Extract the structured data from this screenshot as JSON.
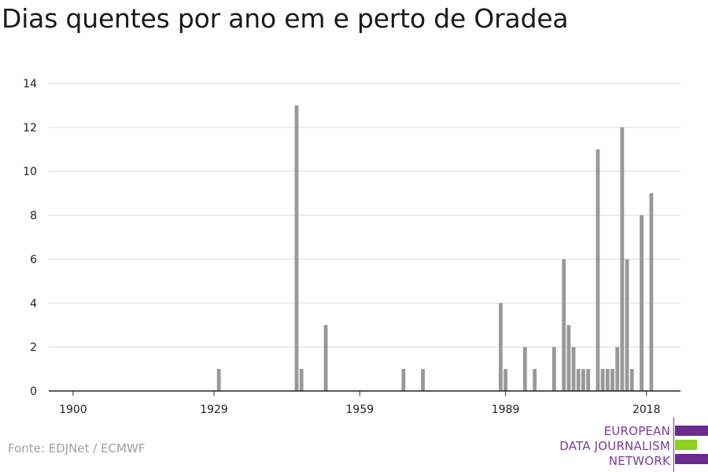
{
  "title": "Dias quentes por ano em e perto de Oradea",
  "source": "Fonte: EDJNet / ECMWF",
  "logo": {
    "lines": [
      "EUROPEAN",
      "DATA JOURNALISM",
      "NETWORK"
    ],
    "colors": [
      "#6b2a8c",
      "#8ed11f",
      "#6b2a8c"
    ]
  },
  "colors": {
    "bar": "#999999",
    "grid": "#dddddd",
    "axis": "#222222",
    "text": "#222222"
  },
  "chart_data": {
    "type": "bar",
    "title": "Dias quentes por ano em e perto de Oradea",
    "xlabel": "",
    "ylabel": "",
    "xlim": [
      1895,
      2025
    ],
    "ylim": [
      0,
      14
    ],
    "x_ticks": [
      1900,
      1929,
      1959,
      1989,
      2018
    ],
    "y_ticks": [
      0,
      2,
      4,
      6,
      8,
      10,
      12,
      14
    ],
    "grid": true,
    "x": [
      1930,
      1946,
      1947,
      1952,
      1968,
      1972,
      1988,
      1989,
      1993,
      1995,
      1999,
      2001,
      2002,
      2003,
      2004,
      2005,
      2006,
      2008,
      2009,
      2010,
      2011,
      2012,
      2013,
      2014,
      2015,
      2017,
      2019
    ],
    "values": [
      1,
      13,
      1,
      3,
      1,
      1,
      4,
      1,
      2,
      1,
      2,
      6,
      3,
      2,
      1,
      1,
      1,
      11,
      1,
      1,
      1,
      2,
      12,
      6,
      1,
      8,
      9
    ]
  }
}
